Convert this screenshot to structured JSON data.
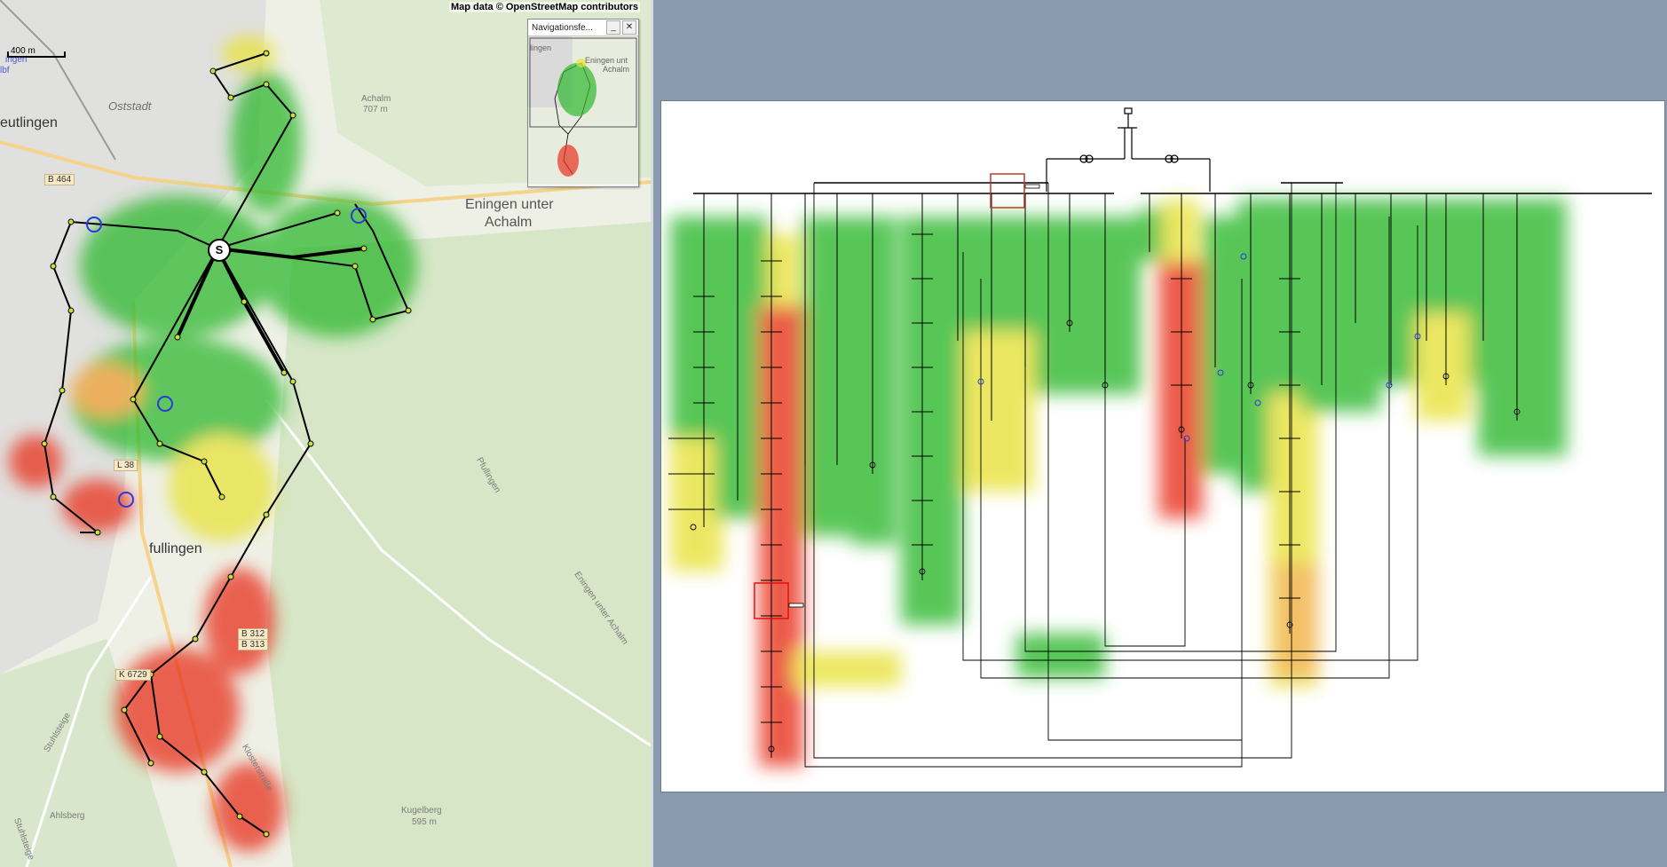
{
  "map": {
    "attribution": "Map data © OpenStreetMap contributors",
    "scale_label": "400 m",
    "place_labels": {
      "reutlingen": "eutlingen",
      "oststadt": "Oststadt",
      "achalm": "Achalm",
      "achalm_elev": "707 m",
      "eningen_1": "Eningen unter",
      "eningen_2": "Achalm",
      "pfullingen": "fullingen",
      "kugelberg": "Kugelberg",
      "kugelberg_elev": "595 m",
      "ahlsberg": "Ahlsberg",
      "pfullingen_road": "Pfullingen",
      "eningen_road": "Eningen unter Achalm",
      "klosterstrasse": "Klosterstraße",
      "stuhlsteige": "Stuhlsteige",
      "stuhlsteige2": "Stuhlsteige",
      "hbf1": "ingen",
      "hbf2": "lbf"
    },
    "road_badges": {
      "b464": "B 464",
      "l38": "L 38",
      "b312": "B 312",
      "b313": "B 313",
      "k6729": "K 6729"
    },
    "source_marker": "S"
  },
  "navigator": {
    "title": "Navigationsfe...",
    "minimize": "_",
    "close": "✕",
    "labels": {
      "a": "lingen",
      "b": "Eningen unt",
      "c": "Achalm"
    }
  },
  "colors": {
    "heat_green": "#2fb82f",
    "heat_yellow": "#e8e23a",
    "heat_red": "#e8321e",
    "line": "#000000",
    "select_box": "#e01010",
    "select_box2": "#c0392b",
    "map_bg": "#eef0e6",
    "panel_bg": "#8a9bb0"
  }
}
